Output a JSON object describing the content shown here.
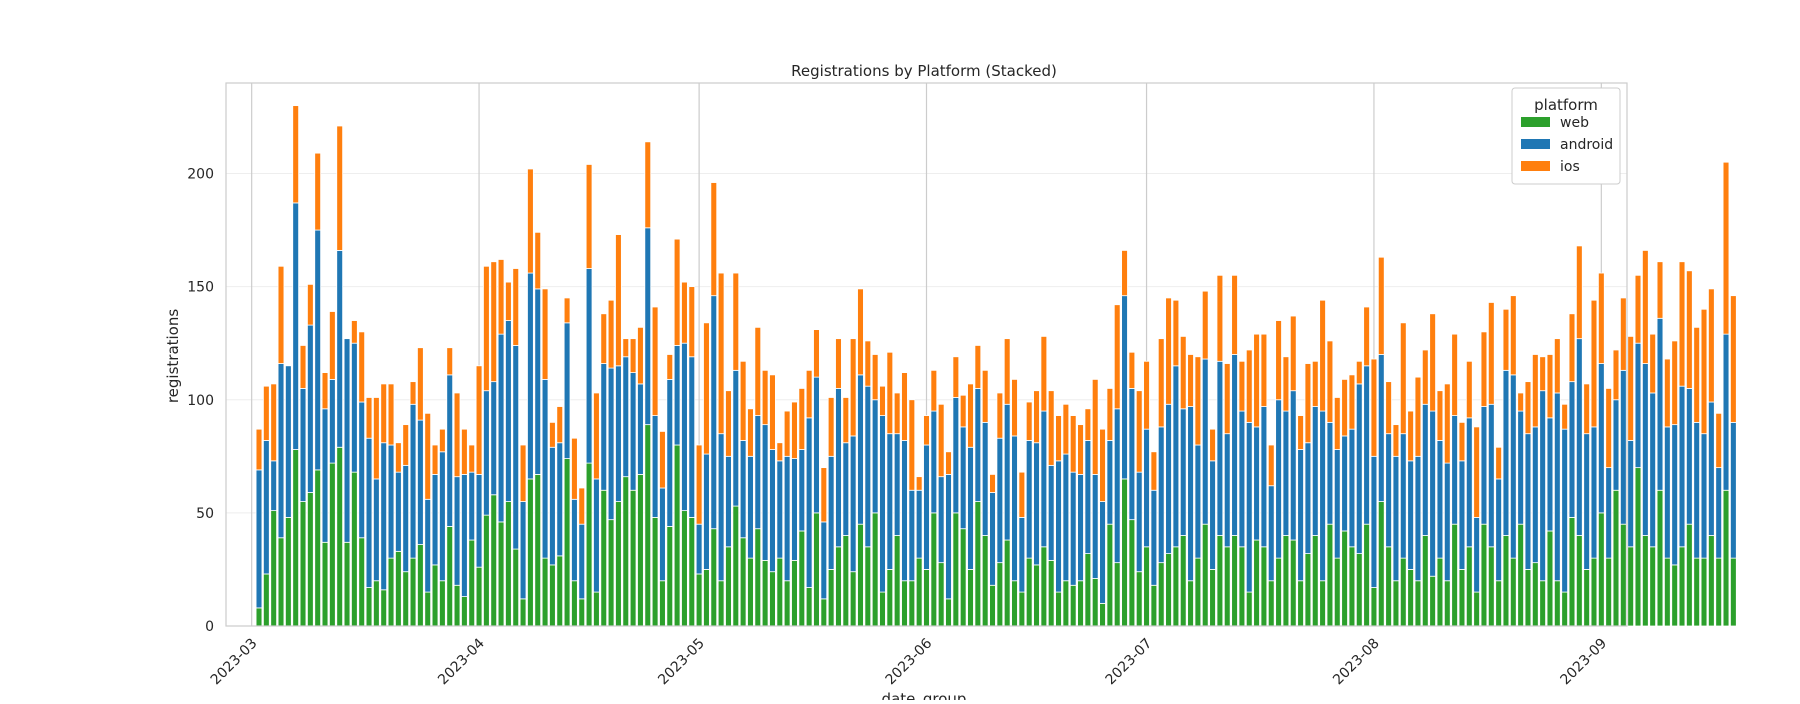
{
  "chart_data": {
    "type": "bar",
    "stacked": true,
    "title": "Registrations by Platform (Stacked)",
    "xlabel": "date_group",
    "ylabel": "registrations",
    "ylim": [
      0,
      240
    ],
    "yticks": [
      0,
      50,
      100,
      150,
      200
    ],
    "x_start": "2023-03-02",
    "x_end": "2023-08-31",
    "xticks": [
      "2023-03",
      "2023-04",
      "2023-05",
      "2023-06",
      "2023-07",
      "2023-08",
      "2023-09"
    ],
    "xtick_dates": [
      "2023-03-01",
      "2023-04-01",
      "2023-05-01",
      "2023-06-01",
      "2023-07-01",
      "2023-08-01",
      "2023-09-01"
    ],
    "grid": true,
    "legend": {
      "title": "platform",
      "placement": "top-right"
    },
    "colors": {
      "web": "#2ca02c",
      "android": "#1f77b4",
      "ios": "#ff7f0e"
    },
    "series": [
      {
        "name": "web",
        "values": [
          8,
          23,
          51,
          39,
          48,
          78,
          55,
          59,
          69,
          37,
          72,
          79,
          37,
          68,
          39,
          17,
          20,
          16,
          30,
          33,
          24,
          30,
          36,
          15,
          27,
          20,
          44,
          18,
          13,
          38,
          26,
          49,
          58,
          46,
          55,
          34,
          12,
          65,
          67,
          30,
          27,
          31,
          74,
          20,
          12,
          72,
          15,
          60,
          47,
          55,
          66,
          60,
          67,
          89,
          48,
          20,
          44,
          80,
          51,
          48,
          23,
          25,
          43,
          20,
          35,
          53,
          39,
          30,
          43,
          29,
          24,
          30,
          20,
          29,
          42,
          17,
          50,
          12,
          25,
          35,
          40,
          24,
          45,
          35,
          50,
          15,
          25,
          40,
          20,
          20,
          30,
          25,
          50,
          28,
          12,
          50,
          43,
          25,
          55,
          40,
          18,
          28,
          38,
          20,
          15,
          30,
          27,
          35,
          29,
          15,
          20,
          18,
          20,
          32,
          21,
          10,
          45,
          28,
          65,
          47,
          24,
          35,
          18,
          28,
          32,
          35,
          40,
          20,
          30,
          45,
          25,
          40,
          35,
          40,
          35,
          15,
          38,
          35,
          20,
          30,
          40,
          38,
          20,
          32,
          40,
          20,
          45,
          30,
          42,
          35,
          32,
          45,
          17,
          55,
          35,
          20,
          30,
          25,
          20,
          40,
          22,
          30,
          20,
          45,
          25,
          35,
          15,
          45,
          35,
          20,
          40,
          30,
          45,
          25,
          28,
          20,
          42,
          20,
          15,
          48,
          40,
          25,
          30,
          50,
          30,
          60,
          45,
          35,
          70,
          40,
          35,
          60,
          30,
          27,
          35,
          45,
          30,
          30,
          40,
          30,
          60,
          30
        ]
      },
      {
        "name": "android",
        "values": [
          61,
          59,
          22,
          77,
          67,
          109,
          50,
          74,
          106,
          59,
          37,
          87,
          90,
          57,
          60,
          66,
          45,
          65,
          50,
          35,
          47,
          68,
          55,
          41,
          40,
          57,
          67,
          48,
          54,
          30,
          41,
          55,
          50,
          83,
          80,
          90,
          43,
          91,
          82,
          79,
          52,
          50,
          60,
          36,
          33,
          86,
          50,
          56,
          67,
          60,
          53,
          52,
          40,
          87,
          45,
          41,
          65,
          44,
          74,
          71,
          22,
          51,
          103,
          65,
          40,
          60,
          43,
          45,
          50,
          60,
          54,
          43,
          55,
          45,
          36,
          75,
          60,
          34,
          50,
          70,
          41,
          60,
          66,
          71,
          50,
          78,
          60,
          45,
          62,
          40,
          30,
          55,
          45,
          38,
          55,
          51,
          45,
          54,
          50,
          50,
          41,
          55,
          60,
          64,
          33,
          52,
          54,
          60,
          42,
          58,
          56,
          50,
          47,
          50,
          46,
          45,
          37,
          68,
          81,
          58,
          44,
          52,
          42,
          60,
          66,
          80,
          56,
          77,
          50,
          73,
          48,
          77,
          50,
          80,
          60,
          75,
          50,
          62,
          42,
          70,
          55,
          66,
          58,
          49,
          57,
          75,
          45,
          48,
          42,
          52,
          75,
          70,
          58,
          65,
          50,
          55,
          55,
          48,
          55,
          58,
          73,
          52,
          52,
          48,
          48,
          57,
          33,
          52,
          63,
          45,
          73,
          81,
          50,
          60,
          60,
          84,
          50,
          83,
          72,
          60,
          87,
          60,
          58,
          66,
          40,
          40,
          68,
          47,
          55,
          76,
          68,
          76,
          58,
          62,
          71,
          60,
          60,
          55,
          59,
          40,
          69,
          60
        ]
      },
      {
        "name": "ios",
        "values": [
          18,
          24,
          34,
          43,
          0,
          43,
          19,
          18,
          34,
          16,
          30,
          55,
          0,
          10,
          31,
          18,
          36,
          26,
          27,
          13,
          18,
          10,
          32,
          38,
          13,
          10,
          12,
          37,
          20,
          12,
          48,
          55,
          53,
          33,
          17,
          34,
          25,
          46,
          25,
          40,
          11,
          16,
          11,
          27,
          16,
          46,
          38,
          22,
          30,
          58,
          8,
          15,
          25,
          38,
          48,
          25,
          11,
          47,
          27,
          31,
          35,
          58,
          50,
          71,
          29,
          43,
          35,
          21,
          39,
          24,
          33,
          8,
          20,
          25,
          27,
          21,
          21,
          24,
          26,
          22,
          20,
          43,
          38,
          20,
          20,
          13,
          36,
          18,
          30,
          40,
          6,
          13,
          18,
          32,
          10,
          18,
          14,
          28,
          19,
          23,
          8,
          20,
          29,
          25,
          20,
          17,
          23,
          33,
          33,
          20,
          22,
          25,
          22,
          14,
          42,
          32,
          23,
          46,
          20,
          16,
          36,
          30,
          17,
          39,
          47,
          29,
          32,
          23,
          39,
          30,
          14,
          38,
          31,
          35,
          22,
          32,
          41,
          32,
          18,
          35,
          24,
          33,
          15,
          35,
          20,
          49,
          36,
          23,
          25,
          24,
          10,
          26,
          43,
          43,
          23,
          14,
          49,
          22,
          35,
          24,
          43,
          22,
          35,
          36,
          17,
          25,
          40,
          33,
          45,
          14,
          27,
          35,
          8,
          23,
          32,
          15,
          28,
          24,
          11,
          30,
          41,
          22,
          56,
          40,
          35,
          22,
          32,
          46,
          30,
          50,
          26,
          25,
          30,
          37,
          55,
          52,
          42,
          55,
          50,
          24,
          76,
          56
        ]
      }
    ]
  }
}
